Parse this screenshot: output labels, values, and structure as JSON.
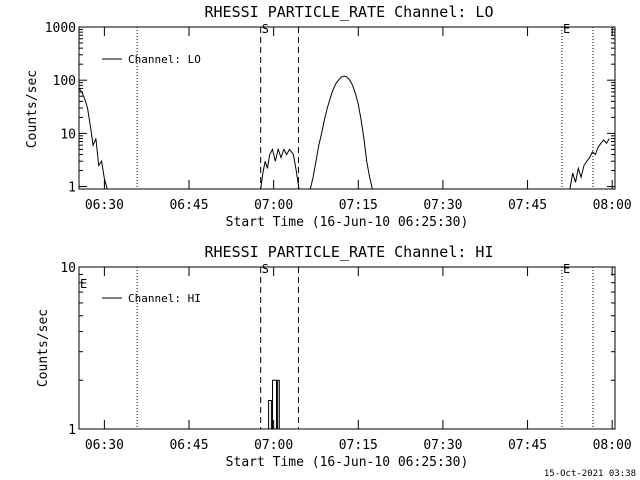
{
  "chart_data": [
    {
      "type": "line",
      "title": "RHESSI PARTICLE_RATE Channel: LO",
      "xlabel": "Start Time (16-Jun-10 06:25:30)",
      "ylabel": "Counts/sec",
      "yscale": "log",
      "ylim": [
        0.9,
        1000
      ],
      "xlim_min": [
        0,
        95
      ],
      "y_tick_labels": [
        "1",
        "10",
        "100",
        "1000"
      ],
      "x_tick_labels": [
        "06:30",
        "06:45",
        "07:00",
        "07:15",
        "07:30",
        "07:45",
        "08:00"
      ],
      "x_tick_min": [
        4.5,
        19.5,
        34.5,
        49.5,
        64.5,
        79.5,
        94.5
      ],
      "legend": "Channel: LO",
      "markers": [
        {
          "label": "S",
          "min": 32.2,
          "style": "dashed"
        },
        {
          "label": "",
          "min": 38.9,
          "style": "dashed"
        },
        {
          "label": "",
          "min": 10.3,
          "style": "dotted"
        },
        {
          "label": "E",
          "min": 85.6,
          "style": "dotted"
        },
        {
          "label": "",
          "min": 96.0,
          "style": "dotted"
        }
      ],
      "series": [
        {
          "name": "Channel: LO",
          "segments": [
            [
              [
                0,
                70
              ],
              [
                0.5,
                60
              ],
              [
                1,
                45
              ],
              [
                1.5,
                30
              ],
              [
                2,
                14
              ],
              [
                2.5,
                6
              ],
              [
                3,
                8
              ],
              [
                3.5,
                2.5
              ],
              [
                4,
                3
              ],
              [
                4.5,
                1.4
              ],
              [
                5,
                0.9
              ]
            ],
            [
              [
                32.2,
                0.9
              ],
              [
                32.6,
                1.8
              ],
              [
                33,
                3
              ],
              [
                33.4,
                2.2
              ],
              [
                33.8,
                4
              ],
              [
                34.3,
                5
              ],
              [
                34.8,
                3
              ],
              [
                35.3,
                5
              ],
              [
                35.8,
                3.5
              ],
              [
                36.3,
                5
              ],
              [
                36.8,
                4
              ],
              [
                37.3,
                5
              ],
              [
                38,
                4
              ],
              [
                38.5,
                2
              ],
              [
                39,
                0.9
              ]
            ],
            [
              [
                41,
                0.9
              ],
              [
                41.5,
                1.5
              ],
              [
                42,
                3
              ],
              [
                42.5,
                6
              ],
              [
                43,
                10
              ],
              [
                43.5,
                18
              ],
              [
                44,
                30
              ],
              [
                44.5,
                45
              ],
              [
                45,
                65
              ],
              [
                45.5,
                85
              ],
              [
                46,
                100
              ],
              [
                46.5,
                115
              ],
              [
                47,
                120
              ],
              [
                47.5,
                115
              ],
              [
                48,
                100
              ],
              [
                48.5,
                80
              ],
              [
                49,
                55
              ],
              [
                49.5,
                35
              ],
              [
                50,
                18
              ],
              [
                50.5,
                8
              ],
              [
                51,
                3
              ],
              [
                51.5,
                1.5
              ],
              [
                52,
                0.9
              ]
            ],
            [
              [
                87,
                0.9
              ],
              [
                87.5,
                1.8
              ],
              [
                88,
                1.2
              ],
              [
                88.5,
                2.2
              ],
              [
                89,
                1.5
              ],
              [
                89.5,
                2.5
              ],
              [
                90,
                3
              ],
              [
                90.5,
                3.5
              ],
              [
                91,
                4.5
              ],
              [
                91.5,
                4
              ],
              [
                92,
                5.5
              ],
              [
                92.5,
                6.5
              ],
              [
                93,
                7.5
              ],
              [
                93.5,
                6.5
              ],
              [
                94,
                8
              ]
            ]
          ]
        }
      ]
    },
    {
      "type": "line",
      "title": "RHESSI PARTICLE_RATE Channel: HI",
      "xlabel": "Start Time (16-Jun-10 06:25:30)",
      "ylabel": "Counts/sec",
      "yscale": "log",
      "ylim": [
        1,
        10
      ],
      "xlim_min": [
        0,
        95
      ],
      "y_tick_labels": [
        "1",
        "10"
      ],
      "x_tick_labels": [
        "06:30",
        "06:45",
        "07:00",
        "07:15",
        "07:30",
        "07:45",
        "08:00"
      ],
      "x_tick_min": [
        4.5,
        19.5,
        34.5,
        49.5,
        64.5,
        79.5,
        94.5
      ],
      "legend": "Channel: HI",
      "markers": [
        {
          "label": "S",
          "min": 32.2,
          "style": "dashed"
        },
        {
          "label": "",
          "min": 38.9,
          "style": "dashed"
        },
        {
          "label": "E",
          "min": 0,
          "style": "none"
        },
        {
          "label": "",
          "min": 10.3,
          "style": "dotted"
        },
        {
          "label": "E",
          "min": 85.6,
          "style": "dotted"
        },
        {
          "label": "",
          "min": 96.0,
          "style": "dotted"
        }
      ],
      "series": [
        {
          "name": "Channel: HI",
          "segments": [
            [
              [
                33.6,
                1
              ],
              [
                33.6,
                1.5
              ],
              [
                34.1,
                1.5
              ],
              [
                34.1,
                1
              ],
              [
                34.3,
                1
              ],
              [
                34.3,
                2
              ],
              [
                35.0,
                2
              ],
              [
                35.0,
                1
              ],
              [
                35.2,
                1
              ],
              [
                35.2,
                2
              ],
              [
                35.5,
                2
              ],
              [
                35.5,
                1
              ]
            ]
          ]
        }
      ]
    }
  ],
  "footer": {
    "timestamp": "15-Oct-2021 03:38"
  }
}
